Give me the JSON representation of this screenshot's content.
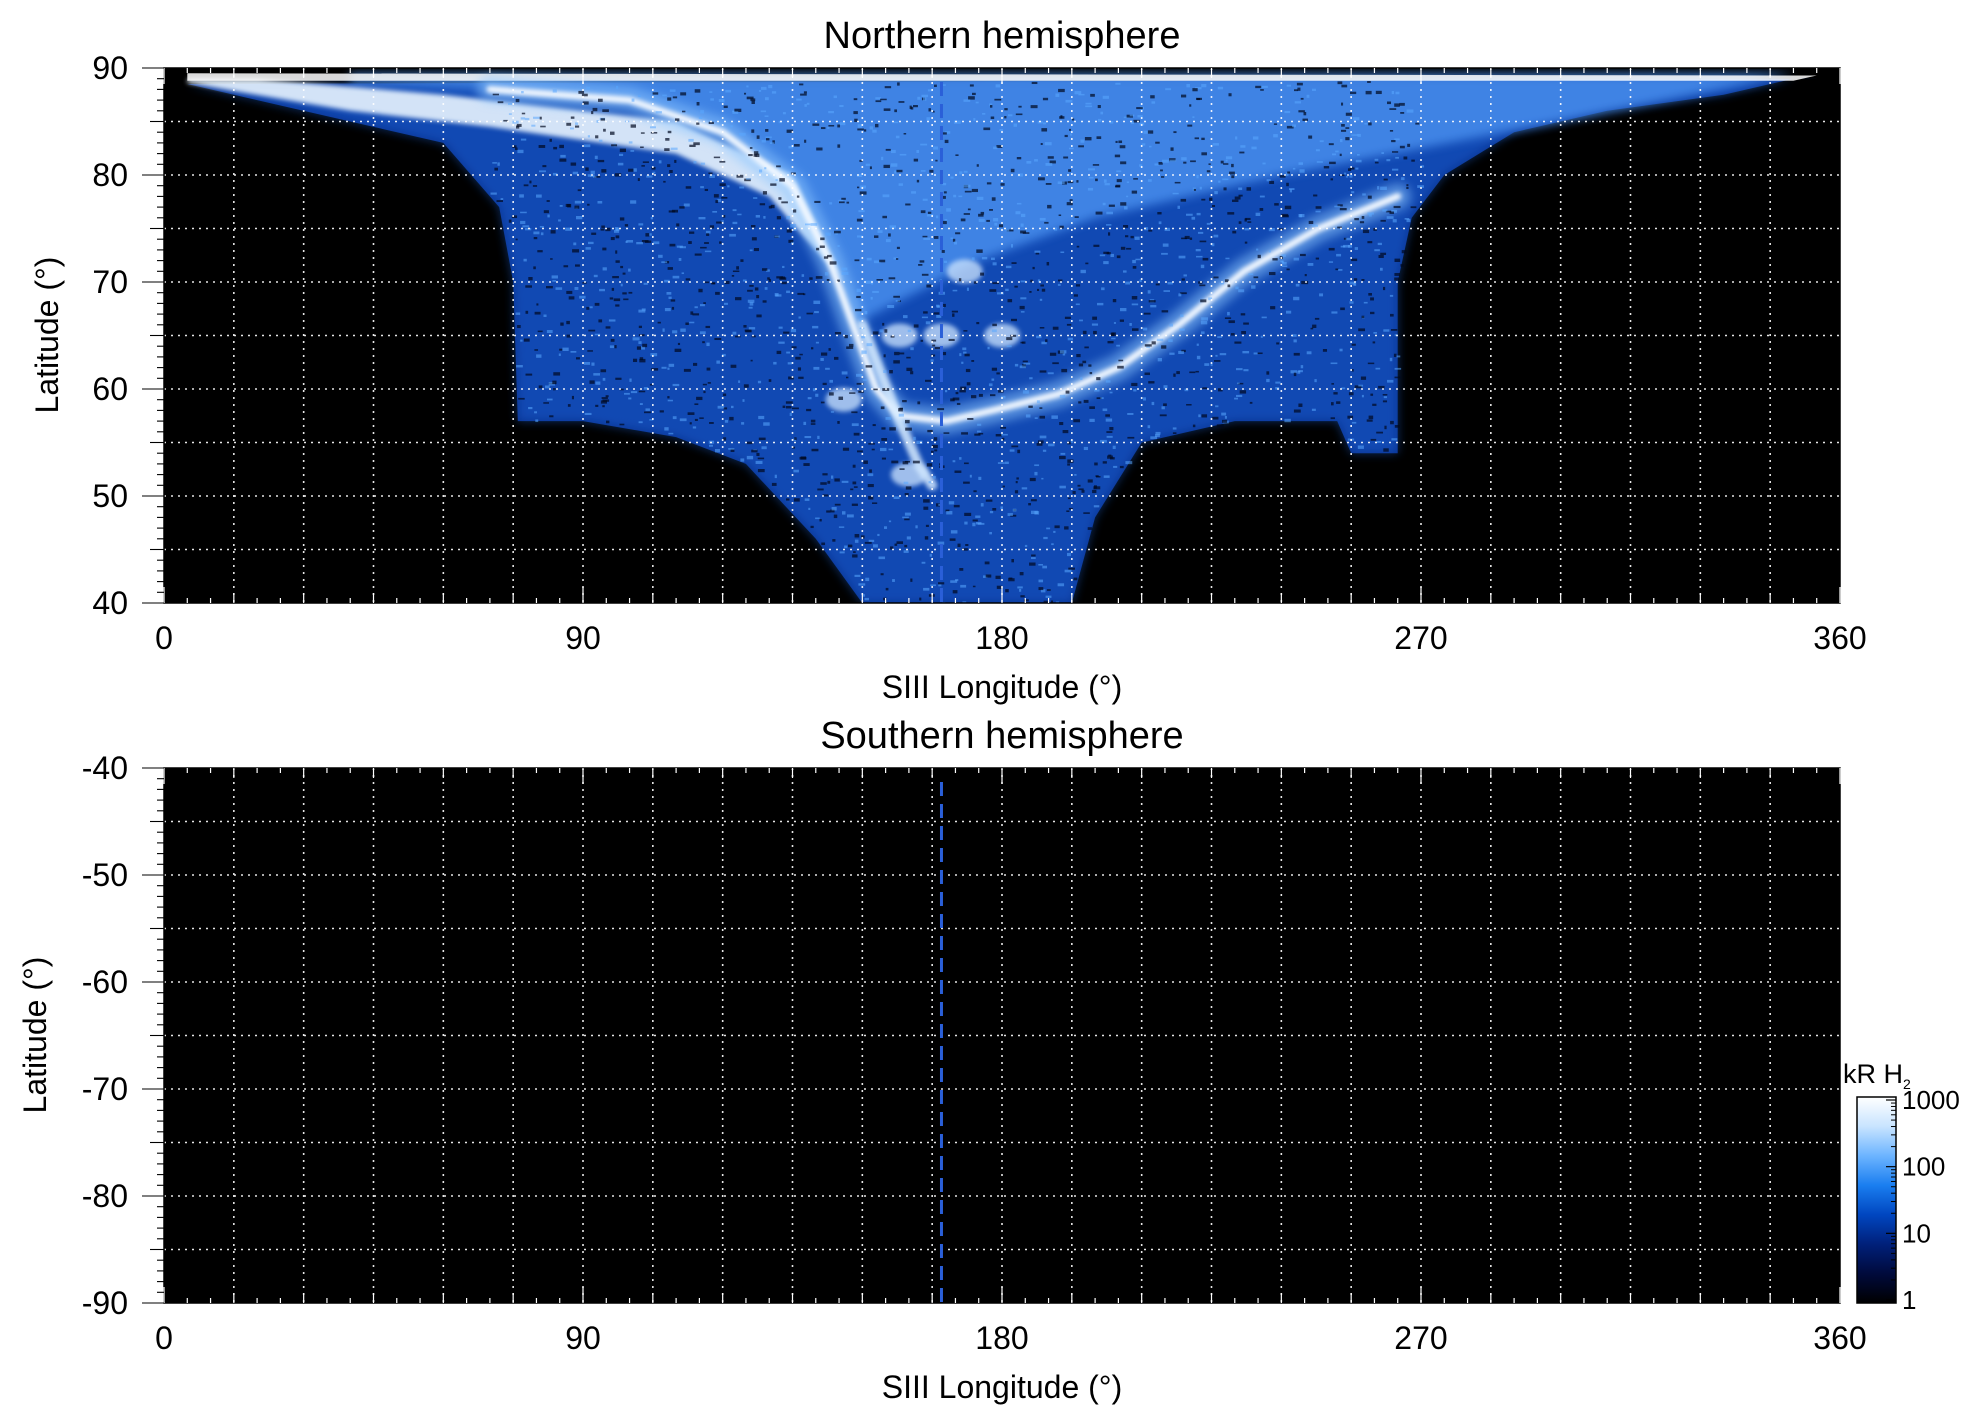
{
  "chart_data": [
    {
      "type": "heatmap",
      "title": "Northern hemisphere",
      "xlabel": "SIII Longitude (°)",
      "ylabel": "Latitude (°)",
      "xlim": [
        0,
        360
      ],
      "ylim": [
        40,
        90
      ],
      "x_ticks": [
        "0",
        "90",
        "180",
        "270",
        "360"
      ],
      "y_ticks": [
        "40",
        "50",
        "60",
        "70",
        "80",
        "90"
      ],
      "grid": true,
      "background": "#000000",
      "reference_line_longitude": 167,
      "emission": {
        "coverage_boundary": [
          [
            5,
            88.5
          ],
          [
            20,
            87
          ],
          [
            40,
            85
          ],
          [
            60,
            83
          ],
          [
            72,
            77
          ],
          [
            75,
            70
          ],
          [
            76,
            57
          ],
          [
            90,
            57
          ],
          [
            110,
            55.5
          ],
          [
            125,
            53
          ],
          [
            140,
            46
          ],
          [
            150,
            40
          ],
          [
            195,
            40
          ],
          [
            200,
            48
          ],
          [
            210,
            55
          ],
          [
            230,
            57
          ],
          [
            252,
            57
          ],
          [
            255,
            54
          ],
          [
            265,
            54
          ],
          [
            265,
            70
          ],
          [
            268,
            76
          ],
          [
            275,
            80
          ],
          [
            290,
            84
          ],
          [
            310,
            86
          ],
          [
            335,
            87.5
          ],
          [
            350,
            89
          ],
          [
            355,
            89
          ]
        ],
        "main_oval": [
          [
            70,
            88
          ],
          [
            100,
            87
          ],
          [
            120,
            84
          ],
          [
            135,
            79
          ],
          [
            143,
            72
          ],
          [
            148,
            66
          ],
          [
            153,
            60
          ],
          [
            158,
            57.5
          ],
          [
            168,
            57
          ],
          [
            178,
            58
          ],
          [
            192,
            59.5
          ],
          [
            205,
            62
          ],
          [
            218,
            66
          ],
          [
            232,
            71
          ],
          [
            248,
            75
          ],
          [
            265,
            78
          ]
        ],
        "spur": [
          [
            150,
            66
          ],
          [
            158,
            57
          ],
          [
            162,
            53
          ],
          [
            165,
            51
          ]
        ],
        "bright_spots": [
          [
            160,
            52
          ],
          [
            167,
            65
          ],
          [
            172,
            71
          ],
          [
            180,
            65
          ],
          [
            158,
            65
          ],
          [
            146,
            59
          ]
        ]
      }
    },
    {
      "type": "heatmap",
      "title": "Southern hemisphere",
      "xlabel": "SIII Longitude (°)",
      "ylabel": "Latitude (°)",
      "xlim": [
        0,
        360
      ],
      "ylim": [
        -90,
        -40
      ],
      "x_ticks": [
        "0",
        "90",
        "180",
        "270",
        "360"
      ],
      "y_ticks": [
        "-40",
        "-50",
        "-60",
        "-70",
        "-80",
        "-90"
      ],
      "grid": true,
      "background": "#000000",
      "reference_line_longitude": 167
    }
  ],
  "colorbar": {
    "label": "kR H",
    "label_subscript": "2",
    "ticks": [
      "1000",
      "100",
      "10",
      "1"
    ],
    "scale": "log",
    "range": [
      1,
      1000
    ],
    "colors": [
      "#000000",
      "#000a3c",
      "#00207a",
      "#0046c0",
      "#1a7ef0",
      "#6cb4ff",
      "#c8e4ff",
      "#ffffff"
    ]
  }
}
